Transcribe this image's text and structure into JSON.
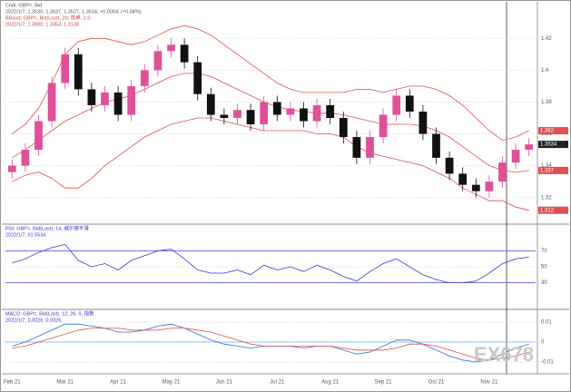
{
  "chart_data": [
    {
      "type": "candlestick",
      "title": "Cndl; GBP=, Bid",
      "subtitle": "2022/1/7, 1.3530, 1.3537, 1.3527, 1.3534, +0.0004, (+0.04%)",
      "categories": [
        "Feb 21",
        null,
        null,
        null,
        "Mar 21",
        null,
        null,
        null,
        "Apr 21",
        null,
        null,
        null,
        "May 21",
        null,
        null,
        null,
        "Jun 21",
        null,
        null,
        null,
        "Jul 21",
        null,
        null,
        null,
        "Aug 21",
        null,
        null,
        null,
        "Sep 21",
        null,
        null,
        null,
        "Oct 21",
        null,
        null,
        null,
        "Nov 21",
        null,
        null,
        null
      ],
      "open": [
        1.336,
        1.34,
        1.35,
        1.368,
        1.392,
        1.41,
        1.388,
        1.378,
        1.386,
        1.372,
        1.39,
        1.4,
        1.412,
        1.416,
        1.405,
        1.385,
        1.372,
        1.37,
        1.375,
        1.366,
        1.38,
        1.372,
        1.376,
        1.368,
        1.378,
        1.37,
        1.358,
        1.345,
        1.358,
        1.372,
        1.384,
        1.374,
        1.36,
        1.345,
        1.335,
        1.328,
        1.324,
        1.33,
        1.342,
        1.35
      ],
      "high": [
        1.344,
        1.354,
        1.372,
        1.396,
        1.414,
        1.414,
        1.392,
        1.39,
        1.39,
        1.394,
        1.404,
        1.416,
        1.42,
        1.42,
        1.409,
        1.389,
        1.376,
        1.379,
        1.379,
        1.384,
        1.384,
        1.38,
        1.38,
        1.382,
        1.382,
        1.374,
        1.362,
        1.362,
        1.376,
        1.388,
        1.388,
        1.378,
        1.364,
        1.349,
        1.339,
        1.332,
        1.334,
        1.346,
        1.354,
        1.3574
      ],
      "low": [
        1.332,
        1.336,
        1.346,
        1.364,
        1.388,
        1.384,
        1.374,
        1.374,
        1.368,
        1.368,
        1.386,
        1.396,
        1.408,
        1.401,
        1.381,
        1.368,
        1.366,
        1.366,
        1.362,
        1.362,
        1.368,
        1.368,
        1.364,
        1.364,
        1.366,
        1.354,
        1.341,
        1.341,
        1.354,
        1.368,
        1.37,
        1.356,
        1.341,
        1.331,
        1.324,
        1.32,
        1.32,
        1.326,
        1.338,
        1.346
      ],
      "close": [
        1.34,
        1.35,
        1.368,
        1.392,
        1.41,
        1.388,
        1.378,
        1.386,
        1.372,
        1.39,
        1.4,
        1.412,
        1.416,
        1.405,
        1.385,
        1.372,
        1.37,
        1.375,
        1.366,
        1.38,
        1.372,
        1.376,
        1.368,
        1.378,
        1.37,
        1.358,
        1.345,
        1.358,
        1.372,
        1.384,
        1.374,
        1.36,
        1.345,
        1.335,
        1.328,
        1.324,
        1.33,
        1.342,
        1.35,
        1.3534
      ],
      "up_color": "#e0509a",
      "down_color": "#111111",
      "overlay": {
        "name": "BBand; GBP=, Bid(Last), 20, 简单, 2.0",
        "label": "2022/1/7, 1.3600, 1.3353, 1.3138",
        "color": "#e05050",
        "upper": [
          1.36,
          1.366,
          1.376,
          1.392,
          1.41,
          1.418,
          1.42,
          1.42,
          1.418,
          1.416,
          1.418,
          1.422,
          1.426,
          1.428,
          1.426,
          1.422,
          1.416,
          1.41,
          1.404,
          1.398,
          1.392,
          1.388,
          1.386,
          1.386,
          1.386,
          1.386,
          1.388,
          1.388,
          1.386,
          1.388,
          1.39,
          1.39,
          1.388,
          1.384,
          1.378,
          1.37,
          1.362,
          1.356,
          1.358,
          1.362
        ],
        "middle": [
          1.345,
          1.35,
          1.356,
          1.362,
          1.368,
          1.372,
          1.376,
          1.38,
          1.382,
          1.384,
          1.388,
          1.392,
          1.396,
          1.398,
          1.398,
          1.396,
          1.392,
          1.388,
          1.384,
          1.38,
          1.377,
          1.375,
          1.374,
          1.373,
          1.373,
          1.372,
          1.37,
          1.368,
          1.366,
          1.366,
          1.366,
          1.365,
          1.362,
          1.358,
          1.352,
          1.346,
          1.34,
          1.337,
          1.336,
          1.337
        ],
        "lower": [
          1.33,
          1.334,
          1.336,
          1.332,
          1.326,
          1.326,
          1.332,
          1.34,
          1.346,
          1.352,
          1.358,
          1.362,
          1.366,
          1.368,
          1.37,
          1.37,
          1.368,
          1.366,
          1.364,
          1.362,
          1.362,
          1.362,
          1.362,
          1.36,
          1.36,
          1.358,
          1.352,
          1.348,
          1.346,
          1.344,
          1.342,
          1.34,
          1.336,
          1.332,
          1.326,
          1.322,
          1.318,
          1.318,
          1.314,
          1.312
        ]
      },
      "ylim": [
        1.305,
        1.435
      ],
      "yticks": [
        1.32,
        1.34,
        1.36,
        1.38,
        1.4,
        1.42
      ],
      "grid": true
    },
    {
      "type": "line",
      "title": "RSI; GBP=, Bid(Last), 14, 威尔德平滑",
      "subtitle": "2022/1/7, 61.5534",
      "series": [
        {
          "color": "#3a3ad0",
          "values": [
            55,
            60,
            68,
            74,
            78,
            58,
            50,
            54,
            46,
            58,
            64,
            70,
            72,
            60,
            46,
            42,
            42,
            46,
            40,
            52,
            46,
            50,
            44,
            52,
            46,
            38,
            32,
            44,
            54,
            60,
            50,
            40,
            34,
            30,
            30,
            32,
            42,
            54,
            60,
            62
          ]
        }
      ],
      "levels": [
        70,
        30
      ],
      "level_color": "#4a4ae0",
      "ylim": [
        0,
        100
      ],
      "yticks": [
        30,
        50,
        70
      ],
      "grid": true
    },
    {
      "type": "line",
      "title": "MACD; GBP=, Bid(Last), 12, 26, 9, 指数",
      "subtitle": "2022/1/7, 0.0026, 0.0026",
      "series": [
        {
          "color": "#2f6fd0",
          "values": [
            -0.002,
            0.0,
            0.003,
            0.006,
            0.009,
            0.009,
            0.008,
            0.007,
            0.005,
            0.005,
            0.006,
            0.008,
            0.009,
            0.007,
            0.004,
            0.001,
            -0.001,
            -0.002,
            -0.003,
            -0.002,
            -0.002,
            -0.002,
            -0.003,
            -0.002,
            -0.002,
            -0.004,
            -0.006,
            -0.005,
            -0.002,
            0.001,
            0.001,
            -0.001,
            -0.004,
            -0.007,
            -0.009,
            -0.01,
            -0.009,
            -0.006,
            -0.003,
            -0.001
          ]
        },
        {
          "color": "#e05050",
          "values": [
            -0.003,
            -0.002,
            0.0,
            0.002,
            0.004,
            0.006,
            0.007,
            0.007,
            0.007,
            0.006,
            0.006,
            0.006,
            0.007,
            0.007,
            0.006,
            0.005,
            0.003,
            0.001,
            -0.001,
            -0.002,
            -0.002,
            -0.002,
            -0.002,
            -0.002,
            -0.002,
            -0.003,
            -0.004,
            -0.004,
            -0.004,
            -0.003,
            -0.001,
            -0.001,
            -0.002,
            -0.004,
            -0.006,
            -0.008,
            -0.009,
            -0.008,
            -0.007,
            -0.005
          ]
        }
      ],
      "levels": [
        0
      ],
      "level_color": "#6fb0e8",
      "ylim": [
        -0.015,
        0.015
      ],
      "yticks": [
        -0.01,
        0,
        0.01
      ],
      "grid": true
    }
  ],
  "watermark": "EX678"
}
